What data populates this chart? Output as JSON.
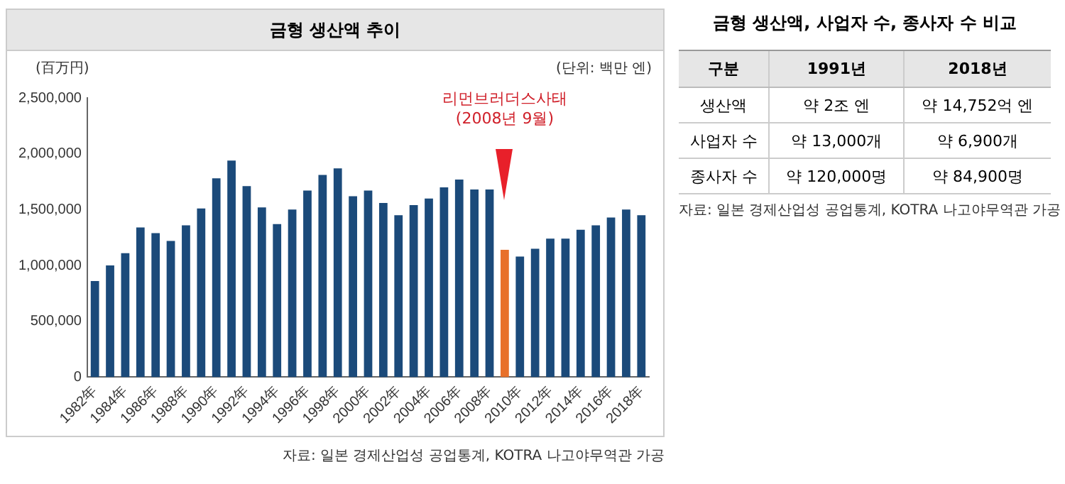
{
  "chart_data": [
    {
      "type": "bar",
      "title": "금형 생산액 추이",
      "ylabel": "(百万円)",
      "subtitle": "(단위: 백만 엔)",
      "categories": [
        "1982年",
        null,
        "1984年",
        null,
        "1986年",
        null,
        "1988年",
        null,
        "1990年",
        null,
        "1992年",
        null,
        "1994年",
        null,
        "1996年",
        null,
        "1998年",
        null,
        "2000年",
        null,
        "2002年",
        null,
        "2004年",
        null,
        "2006年",
        null,
        "2008年",
        null,
        "2010年",
        null,
        "2012年",
        null,
        "2014年",
        null,
        "2016年",
        null,
        "2018年"
      ],
      "series": [
        {
          "color": "#1b4a7a",
          "colors": [
            "#1b4a7a",
            "#1b4a7a",
            "#1b4a7a",
            "#1b4a7a",
            "#1b4a7a",
            "#1b4a7a",
            "#1b4a7a",
            "#1b4a7a",
            "#1b4a7a",
            "#1b4a7a",
            "#1b4a7a",
            "#1b4a7a",
            "#1b4a7a",
            "#1b4a7a",
            "#1b4a7a",
            "#1b4a7a",
            "#1b4a7a",
            "#1b4a7a",
            "#1b4a7a",
            "#1b4a7a",
            "#1b4a7a",
            "#1b4a7a",
            "#1b4a7a",
            "#1b4a7a",
            "#1b4a7a",
            "#1b4a7a",
            "#1b4a7a",
            "#e8702a",
            "#1b4a7a",
            "#1b4a7a",
            "#1b4a7a",
            "#1b4a7a",
            "#1b4a7a",
            "#1b4a7a",
            "#1b4a7a",
            "#1b4a7a",
            "#1b4a7a"
          ],
          "values": [
            860000,
            1000000,
            1110000,
            1340000,
            1290000,
            1220000,
            1360000,
            1510000,
            1780000,
            1940000,
            1710000,
            1520000,
            1370000,
            1500000,
            1670000,
            1810000,
            1870000,
            1620000,
            1670000,
            1560000,
            1450000,
            1540000,
            1600000,
            1700000,
            1770000,
            1680000,
            1680000,
            1140000,
            1080000,
            1150000,
            1240000,
            1240000,
            1320000,
            1360000,
            1430000,
            1500000,
            1450000
          ]
        }
      ],
      "ylim": [
        0,
        2500000
      ],
      "yticks": [
        {
          "value": 0,
          "label": "0"
        },
        {
          "value": 500000,
          "label": "500,000"
        },
        {
          "value": 1000000,
          "label": "1,000,000"
        },
        {
          "value": 1500000,
          "label": "1,500,000"
        },
        {
          "value": 2000000,
          "label": "2,000,000"
        },
        {
          "value": 2500000,
          "label": "2,500,000"
        }
      ],
      "grid": false,
      "legend": false,
      "annotations": [
        "리먼브러더스사태\n(2008년 9월)",
        "자료: 일본 경제산업성 공업통계, KOTRA 나고야무역관 가공"
      ]
    },
    {
      "type": "other",
      "title": "금형 생산액, 사업자 수, 종사자 수 비교",
      "categories": [
        "구분",
        "1991년",
        "2018년"
      ],
      "y_categories": [
        "생산액",
        "사업자 수",
        "종사자 수"
      ],
      "cell_labels": [
        [
          "약 2조 엔",
          "약 14,752억 엔"
        ],
        [
          "약 13,000개",
          "약 6,900개"
        ],
        [
          "약 120,000명",
          "약 84,900명"
        ]
      ],
      "annotations": [
        "자료: 일본 경제산업성 공업통계, KOTRA 나고야무역관 가공"
      ]
    }
  ]
}
